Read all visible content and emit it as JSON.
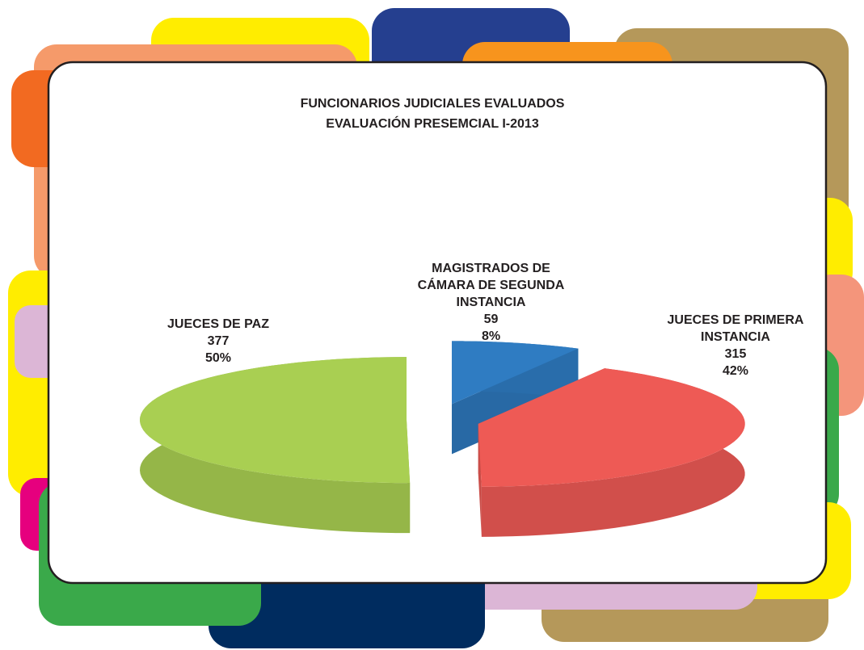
{
  "chart_data": {
    "type": "pie3d",
    "title": "FUNCIONARIOS JUDICIALES EVALUADOS",
    "subtitle": "EVALUACIÓN PRESEMCIAL I-2013",
    "categories": [
      "JUECES DE PAZ",
      "MAGISTRADOS DE CÁMARA DE SEGUNDA INSTANCIA",
      "JUECES DE PRIMERA INSTANCIA"
    ],
    "values": [
      377,
      59,
      315
    ],
    "percentages": [
      50,
      8,
      42
    ],
    "percentage_labels": [
      "50%",
      "8%",
      "42%"
    ],
    "colors": [
      "#a9cf52",
      "#2f7cc2",
      "#ee5a55"
    ]
  }
}
